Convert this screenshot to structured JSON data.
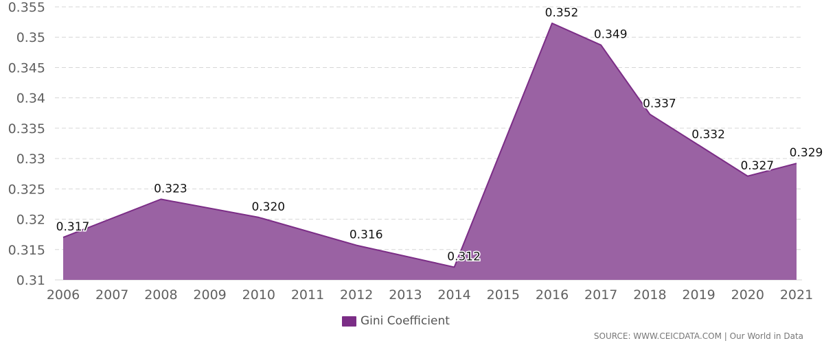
{
  "chart_data": {
    "type": "area",
    "x": [
      "2006",
      "2008",
      "2010",
      "2012",
      "2014",
      "2016",
      "2017",
      "2018",
      "2019",
      "2020",
      "2021"
    ],
    "values": [
      0.317,
      0.3233,
      0.3203,
      0.3157,
      0.3121,
      0.3523,
      0.3487,
      0.3373,
      0.3322,
      0.3271,
      0.3292
    ],
    "data_labels": [
      "0.317",
      "0.323",
      "0.320",
      "0.316",
      "0.312",
      "0.352",
      "0.349",
      "0.337",
      "0.332",
      "0.327",
      "0.329"
    ],
    "x_ticks": [
      "2006",
      "2007",
      "2008",
      "2009",
      "2010",
      "2011",
      "2012",
      "2013",
      "2014",
      "2015",
      "2016",
      "2017",
      "2018",
      "2019",
      "2020",
      "2021"
    ],
    "y_ticks": [
      "0.31",
      "0.315",
      "0.32",
      "0.325",
      "0.33",
      "0.335",
      "0.34",
      "0.345",
      "0.35",
      "0.355"
    ],
    "ylim": [
      0.31,
      0.355
    ],
    "grid": "horizontal dashed",
    "legend_position": "bottom-center",
    "series": [
      {
        "name": "Gini Coefficient",
        "color": "#7b2d86",
        "fill": "#9a62a3"
      }
    ]
  },
  "legend": {
    "label": "Gini Coefficient"
  },
  "source": "SOURCE: WWW.CEICDATA.COM | Our World in Data"
}
